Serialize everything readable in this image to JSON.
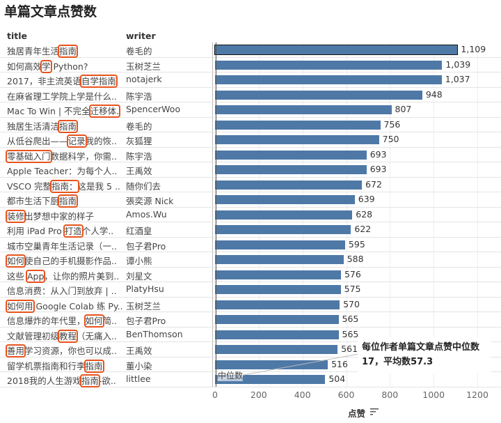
{
  "title": "单篇文章点赞数",
  "headers": {
    "title": "title",
    "writer": "writer"
  },
  "annotation": {
    "text": "每位作者单篇文章点赞中位数17，平均数57.3",
    "median_label": "中位数",
    "median_value": 17,
    "mean_value": 57.3
  },
  "colors": {
    "bar": "#4e79a7",
    "highlight_box": "#e8531c"
  },
  "chart_data": {
    "type": "bar",
    "orientation": "horizontal",
    "title": "单篇文章点赞数",
    "xlabel": "点赞",
    "xlim": [
      0,
      1200
    ],
    "xticks": [
      0,
      200,
      400,
      600,
      800,
      1000,
      1200
    ],
    "grid": true,
    "rows": [
      {
        "title": [
          "",
          "独居青年生活",
          "指南",
          ""
        ],
        "writer": "卷毛的",
        "value": 1109,
        "label": "1,109"
      },
      {
        "title": [
          "",
          "如何高效",
          "学",
          " Python?"
        ],
        "writer": "玉树芝兰",
        "value": 1039,
        "label": "1,039"
      },
      {
        "title": [
          "",
          "2017，非主流英语",
          "自学指南",
          ""
        ],
        "writer": "notajerk",
        "value": 1037,
        "label": "1,037"
      },
      {
        "title": [
          "在麻省理工学院上学是什么..",
          "",
          "",
          ""
        ],
        "writer": "陈宇浩",
        "value": 948,
        "label": "948"
      },
      {
        "title": [
          "",
          "Mac To Win | 不完全",
          "迁移体.",
          ""
        ],
        "writer": "SpencerWoo",
        "value": 807,
        "label": "807"
      },
      {
        "title": [
          "",
          "独居生活清洁",
          "指南",
          ""
        ],
        "writer": "卷毛的",
        "value": 756,
        "label": "756"
      },
      {
        "title": [
          "",
          "从低谷爬出——",
          "记录",
          "我的恢.."
        ],
        "writer": "灰狐狸",
        "value": 750,
        "label": "750"
      },
      {
        "title": [
          "",
          "",
          "零基础入门",
          "数据科学，你需.."
        ],
        "writer": "陈宇浩",
        "value": 693,
        "label": "693"
      },
      {
        "title": [
          "Apple Teacher：为每个人..",
          "",
          "",
          ""
        ],
        "writer": "王禹效",
        "value": 693,
        "label": "693"
      },
      {
        "title": [
          "",
          "VSCO 完整",
          "指南：",
          "这是我 5 .."
        ],
        "writer": "随你们去",
        "value": 672,
        "label": "672"
      },
      {
        "title": [
          "",
          "都市生活下厨",
          "指南",
          ""
        ],
        "writer": "張奕源 Nick",
        "value": 639,
        "label": "639"
      },
      {
        "title": [
          "",
          "",
          "装修",
          "出梦想中家的样子"
        ],
        "writer": "Amos.Wu",
        "value": 628,
        "label": "628"
      },
      {
        "title": [
          "",
          "利用 iPad Pro ",
          "打造",
          "个人学.."
        ],
        "writer": "红酒皇",
        "value": 622,
        "label": "622"
      },
      {
        "title": [
          "城市空巢青年生活记录（一..",
          "",
          "",
          ""
        ],
        "writer": "包子君Pro",
        "value": 595,
        "label": "595"
      },
      {
        "title": [
          "",
          "",
          "如何",
          "使自己的手机摄影作品.."
        ],
        "writer": "谭小熊",
        "value": 588,
        "label": "588"
      },
      {
        "title": [
          "",
          "这些 ",
          "App",
          "，让你的照片美到.."
        ],
        "writer": "刘星文",
        "value": 576,
        "label": "576"
      },
      {
        "title": [
          "信息消费：从入门到放弃 | ..",
          "",
          "",
          ""
        ],
        "writer": "PlatyHsu",
        "value": 575,
        "label": "575"
      },
      {
        "title": [
          "",
          "",
          "如何用",
          " Google Colab 练 Py.."
        ],
        "writer": "玉树芝兰",
        "value": 570,
        "label": "570"
      },
      {
        "title": [
          "",
          "信息爆炸的年代里，",
          "如何",
          "简.."
        ],
        "writer": "包子君Pro",
        "value": 565,
        "label": "565"
      },
      {
        "title": [
          "",
          "文献管理初级",
          "教程",
          "（无痛入.."
        ],
        "writer": "BenThomson",
        "value": 565,
        "label": "565"
      },
      {
        "title": [
          "",
          "",
          "善用",
          "学习资源，你也可以成.."
        ],
        "writer": "王禹效",
        "value": 561,
        "label": "561"
      },
      {
        "title": [
          "",
          "留学机票指南和行李",
          "指南",
          ""
        ],
        "writer": "董小染",
        "value": 516,
        "label": "516"
      },
      {
        "title": [
          "",
          "2018我的人生游戏",
          "指南",
          "-欲.."
        ],
        "writer": "littlee",
        "value": 504,
        "label": "504"
      }
    ]
  }
}
